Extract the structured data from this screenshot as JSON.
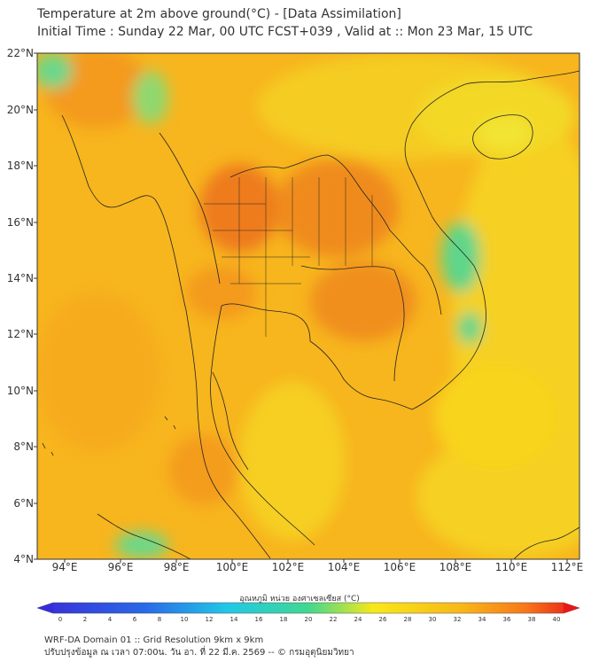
{
  "title": {
    "line1": "Temperature at 2m above ground(°C) - [Data Assimilation]",
    "line2": "Initial Time : Sunday 22 Mar, 00 UTC FCST+039 , Valid at :: Mon 23 Mar, 15 UTC"
  },
  "axes": {
    "lat_labels": [
      "22°N",
      "20°N",
      "18°N",
      "16°N",
      "14°N",
      "12°N",
      "10°N",
      "8°N",
      "6°N",
      "4°N"
    ],
    "lon_labels": [
      "94°E",
      "96°E",
      "98°E",
      "100°E",
      "102°E",
      "104°E",
      "106°E",
      "108°E",
      "110°E",
      "112°E"
    ]
  },
  "colorbar": {
    "title": "อุณหภูมิ หน่วย องศาเซลเซียส (°C)",
    "ticks": [
      "0",
      "2",
      "4",
      "6",
      "8",
      "10",
      "12",
      "14",
      "16",
      "18",
      "20",
      "22",
      "24",
      "26",
      "28",
      "30",
      "32",
      "34",
      "36",
      "38",
      "40"
    ],
    "colors": {
      "cold": "#3a2bd8",
      "cyan": "#20c8e8",
      "green": "#40d890",
      "yellow": "#f8e818",
      "orange": "#f89818",
      "hot": "#e81818"
    }
  },
  "map_colors": {
    "base": "#f7b51e",
    "warm": "#f49a1c",
    "hot": "#ef7d1c",
    "cool": "#f6d820",
    "green": "#5fd68a",
    "border": "#222222"
  },
  "footer": {
    "line1": "WRF-DA Domain 01 :: Grid Resolution 9km x 9km",
    "line2": "ปรับปรุงข้อมูล ณ เวลา 07:00น. วัน อา. ที่ 22 มี.ค. 2569 -- © กรมอุตุนิยมวิทยา"
  }
}
